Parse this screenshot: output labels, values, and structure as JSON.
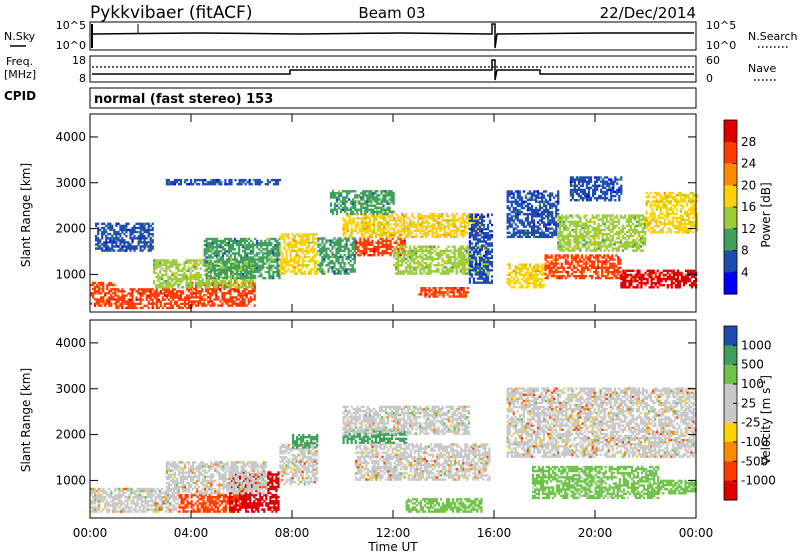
{
  "header": {
    "station": "Pykkvibaer (fitACF)",
    "beam": "Beam 03",
    "date": "22/Dec/2014"
  },
  "top_panels": {
    "nsky_label": "N.Sky",
    "nsky_ticks": [
      "10^5",
      "10^0"
    ],
    "nsearch_label": "N.Search",
    "nsearch_ticks": [
      "10^5",
      "10^0"
    ],
    "freq_label": "Freq.",
    "freq_unit": "[MHz]",
    "freq_ticks": [
      "18",
      "8"
    ],
    "nave_label": "Nave",
    "nave_ticks": [
      "60",
      "0"
    ],
    "cpid_label": "CPID",
    "cpid_text": "normal (fast stereo) 153"
  },
  "chart_data": [
    {
      "type": "heatmap",
      "name": "power",
      "ylabel": "Slant Range [km]",
      "yticks": [
        "4000",
        "3000",
        "2000",
        "1000"
      ],
      "ylim": [
        180,
        4500
      ],
      "xlim": [
        0,
        24
      ],
      "colorbar": {
        "label": "Power [dB]",
        "ticks": [
          "28",
          "24",
          "20",
          "16",
          "12",
          "8",
          "4"
        ],
        "colors": [
          "#dd0000",
          "#ff3c00",
          "#ff8a00",
          "#ffd100",
          "#9ccc3a",
          "#3f9f5c",
          "#1e4bb0",
          "#0000ff"
        ]
      },
      "regions": [
        {
          "t0": 0.0,
          "t1": 1.0,
          "r0": 300,
          "r1": 800,
          "v": 25
        },
        {
          "t0": 1.0,
          "t1": 4.0,
          "r0": 250,
          "r1": 700,
          "v": 27
        },
        {
          "t0": 4.0,
          "t1": 6.5,
          "r0": 300,
          "r1": 800,
          "v": 26
        },
        {
          "t0": 2.5,
          "t1": 6.5,
          "r0": 700,
          "r1": 1300,
          "v": 14
        },
        {
          "t0": 4.5,
          "t1": 7.5,
          "r0": 900,
          "r1": 1800,
          "v": 10
        },
        {
          "t0": 0.2,
          "t1": 2.5,
          "r0": 1500,
          "r1": 2100,
          "v": 6
        },
        {
          "t0": 3.0,
          "t1": 7.5,
          "r0": 2950,
          "r1": 3050,
          "v": 5
        },
        {
          "t0": 7.5,
          "t1": 9.0,
          "r0": 1000,
          "r1": 1900,
          "v": 17
        },
        {
          "t0": 9.0,
          "t1": 10.5,
          "r0": 1000,
          "r1": 1800,
          "v": 9
        },
        {
          "t0": 10.5,
          "t1": 12.5,
          "r0": 1400,
          "r1": 1800,
          "v": 26
        },
        {
          "t0": 10.0,
          "t1": 15.5,
          "r0": 1800,
          "r1": 2300,
          "v": 18
        },
        {
          "t0": 12.0,
          "t1": 15.8,
          "r0": 1000,
          "r1": 1600,
          "v": 14
        },
        {
          "t0": 13.0,
          "t1": 15.0,
          "r0": 500,
          "r1": 700,
          "v": 27
        },
        {
          "t0": 15.0,
          "t1": 16.0,
          "r0": 800,
          "r1": 2300,
          "v": 5
        },
        {
          "t0": 9.5,
          "t1": 12.0,
          "r0": 2300,
          "r1": 2800,
          "v": 10
        },
        {
          "t0": 16.5,
          "t1": 18.0,
          "r0": 700,
          "r1": 1200,
          "v": 17
        },
        {
          "t0": 16.5,
          "t1": 18.5,
          "r0": 1800,
          "r1": 2800,
          "v": 6
        },
        {
          "t0": 18.0,
          "t1": 21.0,
          "r0": 900,
          "r1": 1400,
          "v": 24
        },
        {
          "t0": 21.0,
          "t1": 24.0,
          "r0": 700,
          "r1": 1100,
          "v": 28
        },
        {
          "t0": 18.5,
          "t1": 22.0,
          "r0": 1500,
          "r1": 2300,
          "v": 14
        },
        {
          "t0": 19.0,
          "t1": 21.0,
          "r0": 2600,
          "r1": 3100,
          "v": 6
        },
        {
          "t0": 22.0,
          "t1": 24.0,
          "r0": 1900,
          "r1": 2800,
          "v": 17
        }
      ]
    },
    {
      "type": "heatmap",
      "name": "velocity",
      "ylabel": "Slant Range [km]",
      "yticks": [
        "4000",
        "3000",
        "2000",
        "1000"
      ],
      "ylim": [
        180,
        4500
      ],
      "xlim": [
        0,
        24
      ],
      "colorbar": {
        "label": "Velocity [m s",
        "label_sup": "-1",
        "label_end": "]",
        "ticks": [
          "1000",
          "500",
          "100",
          "25",
          "-25",
          "-100",
          "-500",
          "-1000"
        ],
        "colors": [
          "#1e4bb0",
          "#3f9f5c",
          "#6fc24a",
          "#c8c8c8",
          "#c8c8c8",
          "#ffd100",
          "#ff8a00",
          "#ff3c00",
          "#dd0000"
        ]
      },
      "regions": [
        {
          "t0": 0.0,
          "t1": 3.5,
          "r0": 300,
          "r1": 800,
          "v": 20
        },
        {
          "t0": 3.5,
          "t1": 6.0,
          "r0": 300,
          "r1": 700,
          "v": -200
        },
        {
          "t0": 5.5,
          "t1": 7.5,
          "r0": 300,
          "r1": 1200,
          "v": -700
        },
        {
          "t0": 3.0,
          "t1": 7.0,
          "r0": 700,
          "r1": 1400,
          "v": 0
        },
        {
          "t0": 7.5,
          "t1": 9.0,
          "r0": 900,
          "r1": 1800,
          "v": 0
        },
        {
          "t0": 8.0,
          "t1": 9.0,
          "r0": 1700,
          "r1": 2000,
          "v": 700
        },
        {
          "t0": 10.0,
          "t1": 12.5,
          "r0": 1800,
          "r1": 2100,
          "v": 700
        },
        {
          "t0": 10.5,
          "t1": 15.8,
          "r0": 1000,
          "r1": 1800,
          "v": 0
        },
        {
          "t0": 12.5,
          "t1": 15.5,
          "r0": 300,
          "r1": 600,
          "v": 300
        },
        {
          "t0": 10.0,
          "t1": 15.0,
          "r0": 2000,
          "r1": 2600,
          "v": 50
        },
        {
          "t0": 16.5,
          "t1": 24.0,
          "r0": 1500,
          "r1": 3000,
          "v": 0
        },
        {
          "t0": 17.5,
          "t1": 22.5,
          "r0": 600,
          "r1": 1300,
          "v": 150
        },
        {
          "t0": 22.5,
          "t1": 24.0,
          "r0": 700,
          "r1": 1000,
          "v": 300
        }
      ]
    }
  ],
  "x_axis": {
    "ticks": [
      "00:00",
      "04:00",
      "08:00",
      "12:00",
      "16:00",
      "20:00",
      "00:00"
    ],
    "label": "Time UT"
  }
}
